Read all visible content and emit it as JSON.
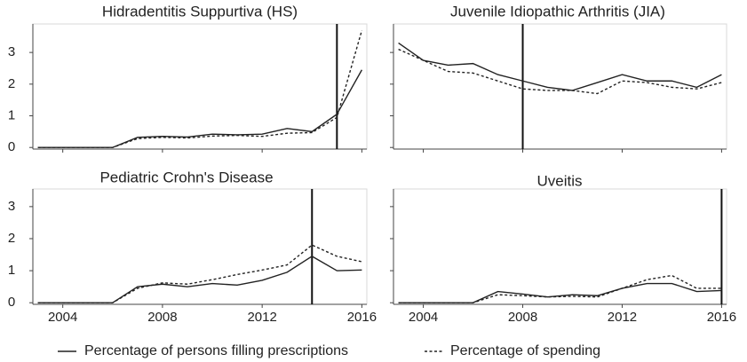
{
  "chart_data": [
    {
      "type": "line",
      "title": "Hidradentitis Suppurtiva (HS)",
      "x": [
        2003,
        2004,
        2005,
        2006,
        2007,
        2008,
        2009,
        2010,
        2011,
        2012,
        2013,
        2014,
        2015,
        2016
      ],
      "series": [
        {
          "name": "Percentage of persons filling prescriptions",
          "style": "solid",
          "color": "#222222",
          "values": [
            0,
            0,
            0,
            0,
            0.32,
            0.35,
            0.33,
            0.42,
            0.4,
            0.42,
            0.6,
            0.5,
            1.05,
            2.45
          ]
        },
        {
          "name": "Percentage of spending",
          "style": "dotted",
          "color": "#222222",
          "values": [
            0,
            0,
            0,
            0,
            0.28,
            0.32,
            0.3,
            0.36,
            0.38,
            0.35,
            0.45,
            0.47,
            0.95,
            3.7
          ]
        }
      ],
      "vline": 2015,
      "xlim": [
        2002.8,
        2016.2
      ],
      "xticks": [
        2004,
        2008,
        2012,
        2016
      ],
      "ylim": [
        -0.05,
        3.9
      ],
      "yticks": [
        0,
        1,
        2,
        3
      ]
    },
    {
      "type": "line",
      "title": "Juvenile Idiopathic Arthritis (JIA)",
      "x": [
        2003,
        2004,
        2005,
        2006,
        2007,
        2008,
        2009,
        2010,
        2011,
        2012,
        2013,
        2014,
        2015,
        2016
      ],
      "series": [
        {
          "name": "Percentage of persons filling prescriptions",
          "style": "solid",
          "color": "#222222",
          "values": [
            3.3,
            2.75,
            2.6,
            2.65,
            2.3,
            2.1,
            1.9,
            1.8,
            2.05,
            2.3,
            2.1,
            2.1,
            1.9,
            2.3
          ]
        },
        {
          "name": "Percentage of spending",
          "style": "dotted",
          "color": "#222222",
          "values": [
            3.1,
            2.75,
            2.4,
            2.35,
            2.1,
            1.85,
            1.8,
            1.8,
            1.7,
            2.1,
            2.05,
            1.9,
            1.85,
            2.05
          ]
        }
      ],
      "vline": 2008,
      "xlim": [
        2002.8,
        2016.2
      ],
      "xticks": [
        2004,
        2008,
        2012,
        2016
      ],
      "ylim": [
        -0.05,
        3.9
      ],
      "yticks": [
        0,
        1,
        2,
        3
      ]
    },
    {
      "type": "line",
      "title": "Pediatric Crohn's Disease",
      "x": [
        2003,
        2004,
        2005,
        2006,
        2007,
        2008,
        2009,
        2010,
        2011,
        2012,
        2013,
        2014,
        2015,
        2016
      ],
      "series": [
        {
          "name": "Percentage of persons filling prescriptions",
          "style": "solid",
          "color": "#222222",
          "values": [
            0,
            0,
            0,
            0,
            0.5,
            0.58,
            0.5,
            0.6,
            0.55,
            0.7,
            0.95,
            1.45,
            1.0,
            1.02
          ]
        },
        {
          "name": "Percentage of spending",
          "style": "dotted",
          "color": "#222222",
          "values": [
            0,
            0,
            0,
            0,
            0.45,
            0.62,
            0.58,
            0.72,
            0.88,
            1.02,
            1.18,
            1.8,
            1.45,
            1.28
          ]
        }
      ],
      "vline": 2014,
      "xlim": [
        2002.8,
        2016.2
      ],
      "xticks": [
        2004,
        2008,
        2012,
        2016
      ],
      "ylim": [
        -0.05,
        3.55
      ],
      "yticks": [
        0,
        1,
        2,
        3
      ]
    },
    {
      "type": "line",
      "title": "Uveitis",
      "x": [
        2003,
        2004,
        2005,
        2006,
        2007,
        2008,
        2009,
        2010,
        2011,
        2012,
        2013,
        2014,
        2015,
        2016
      ],
      "series": [
        {
          "name": "Percentage of persons filling prescriptions",
          "style": "solid",
          "color": "#222222",
          "values": [
            0,
            0,
            0,
            0,
            0.35,
            0.27,
            0.18,
            0.25,
            0.22,
            0.45,
            0.6,
            0.6,
            0.35,
            0.38
          ]
        },
        {
          "name": "Percentage of spending",
          "style": "dotted",
          "color": "#222222",
          "values": [
            0,
            0,
            0,
            0,
            0.25,
            0.22,
            0.18,
            0.2,
            0.18,
            0.45,
            0.72,
            0.85,
            0.45,
            0.45
          ]
        }
      ],
      "vline": 2016,
      "xlim": [
        2002.8,
        2016.2
      ],
      "xticks": [
        2004,
        2008,
        2012,
        2016
      ],
      "ylim": [
        -0.05,
        3.55
      ],
      "yticks": [
        0,
        1,
        2,
        3
      ]
    }
  ]
}
